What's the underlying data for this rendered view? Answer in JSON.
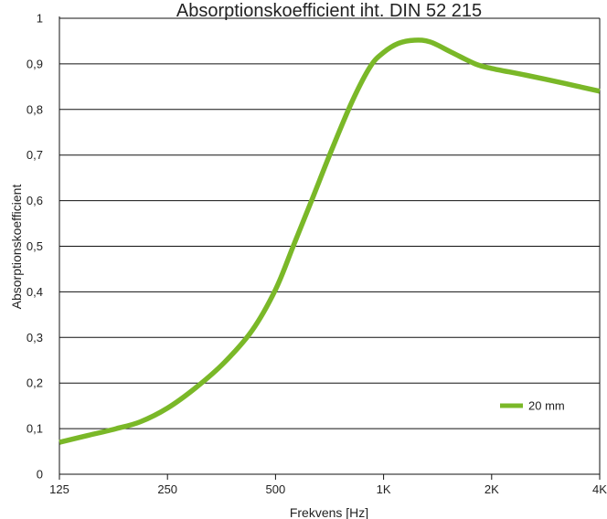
{
  "chart_data": {
    "type": "line",
    "title": "Absorptionskoefficient iht. DIN 52 215",
    "xlabel": "Frekvens [Hz]",
    "ylabel": "Absorptionskoefficient",
    "x_scale": "log2",
    "categories": [
      "125",
      "250",
      "500",
      "1K",
      "2K",
      "4K"
    ],
    "x_values_hz": [
      125,
      250,
      500,
      1000,
      2000,
      4000
    ],
    "ylim": [
      0,
      1
    ],
    "y_ticks": [
      "0",
      "0,1",
      "0,2",
      "0,3",
      "0,4",
      "0,5",
      "0,6",
      "0,7",
      "0,8",
      "0,9",
      "1"
    ],
    "grid": "horizontal",
    "legend_position": "bottom-right",
    "series": [
      {
        "name": "20 mm",
        "color": "#7ab828",
        "points": [
          {
            "x": 125,
            "y": 0.07
          },
          {
            "x": 150,
            "y": 0.085
          },
          {
            "x": 180,
            "y": 0.1
          },
          {
            "x": 210,
            "y": 0.115
          },
          {
            "x": 250,
            "y": 0.145
          },
          {
            "x": 300,
            "y": 0.19
          },
          {
            "x": 360,
            "y": 0.245
          },
          {
            "x": 430,
            "y": 0.315
          },
          {
            "x": 500,
            "y": 0.405
          },
          {
            "x": 560,
            "y": 0.5
          },
          {
            "x": 630,
            "y": 0.6
          },
          {
            "x": 720,
            "y": 0.715
          },
          {
            "x": 820,
            "y": 0.82
          },
          {
            "x": 920,
            "y": 0.895
          },
          {
            "x": 1000,
            "y": 0.925
          },
          {
            "x": 1100,
            "y": 0.945
          },
          {
            "x": 1220,
            "y": 0.952
          },
          {
            "x": 1350,
            "y": 0.948
          },
          {
            "x": 1550,
            "y": 0.925
          },
          {
            "x": 1800,
            "y": 0.9
          },
          {
            "x": 2000,
            "y": 0.89
          },
          {
            "x": 2500,
            "y": 0.875
          },
          {
            "x": 3200,
            "y": 0.857
          },
          {
            "x": 4000,
            "y": 0.84
          }
        ]
      }
    ]
  }
}
